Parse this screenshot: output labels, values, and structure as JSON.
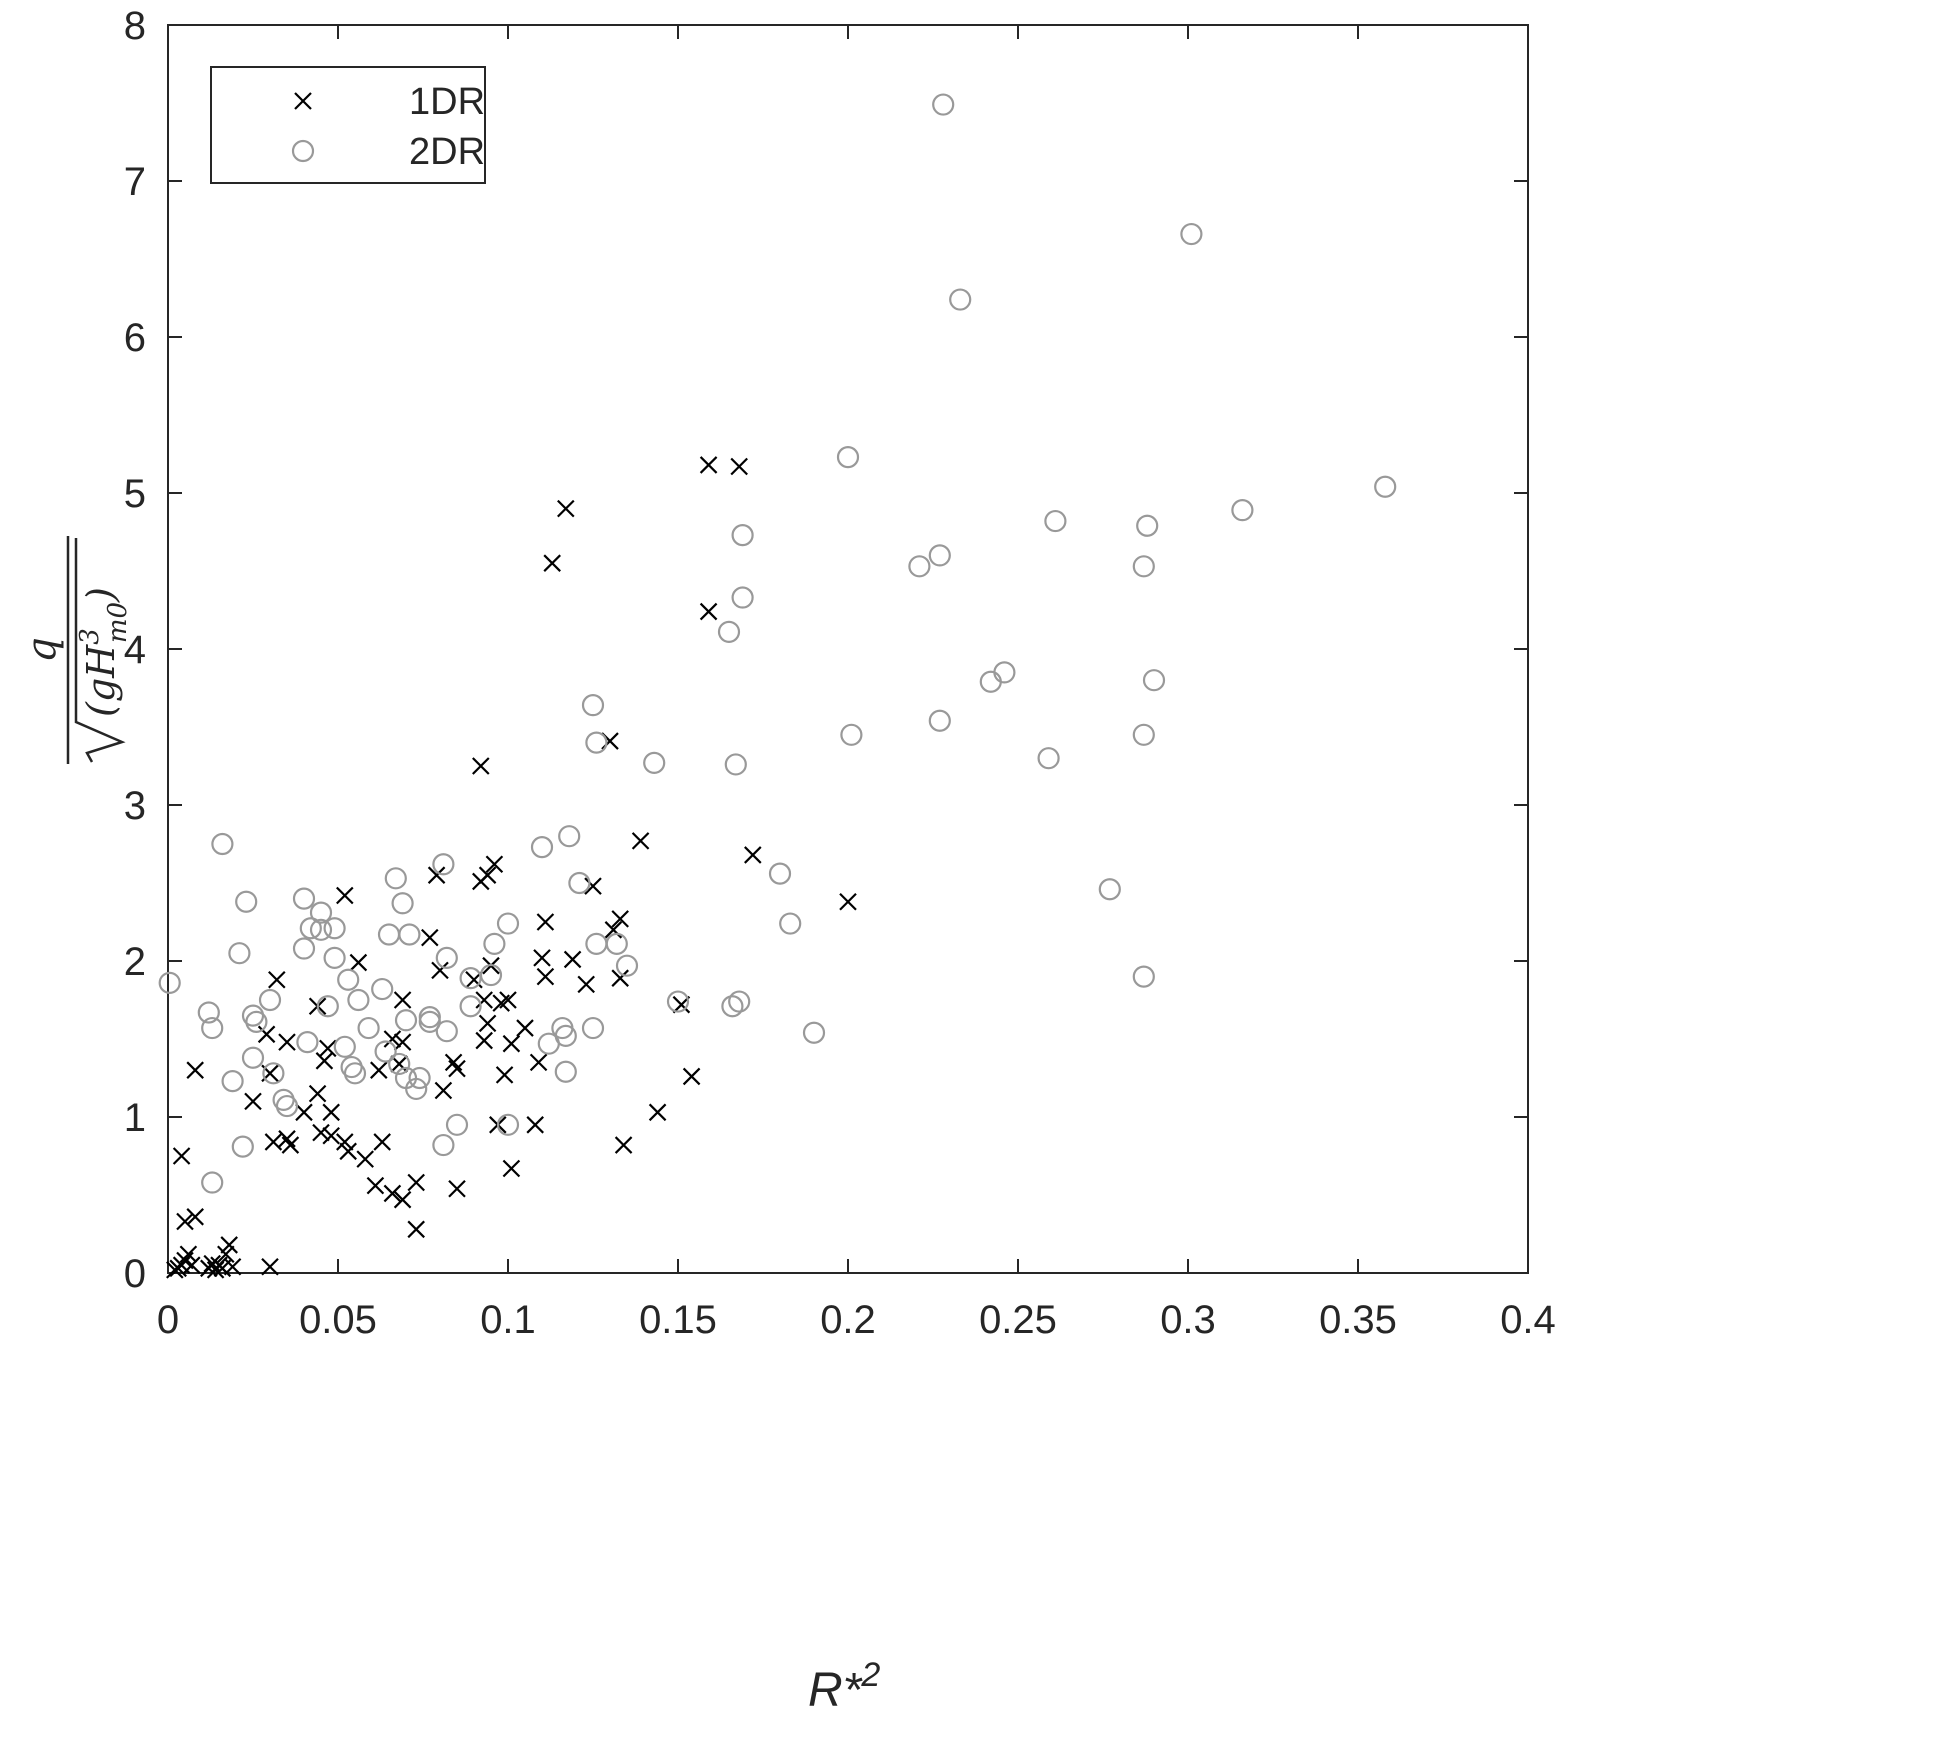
{
  "chart_data": {
    "type": "scatter",
    "title": "",
    "xlabel": {
      "base": "R*",
      "sup": "2"
    },
    "ylabel": {
      "numerator": "q",
      "radicand": "(gH",
      "exp": "3",
      "sub": "m0",
      "close": ")"
    },
    "xlim": [
      0,
      0.4
    ],
    "ylim": [
      0,
      8
    ],
    "x_ticks": [
      "0",
      "0.05",
      "0.1",
      "0.15",
      "0.2",
      "0.25",
      "0.3",
      "0.35",
      "0.4"
    ],
    "y_ticks": [
      "0",
      "1",
      "2",
      "3",
      "4",
      "5",
      "6",
      "7",
      "8"
    ],
    "grid": false,
    "legend": {
      "position": "top-left"
    },
    "series": [
      {
        "name": "1DR",
        "marker": "x",
        "color": "#000000",
        "points": [
          [
            0.002,
            0.02
          ],
          [
            0.003,
            0.03
          ],
          [
            0.004,
            0.05
          ],
          [
            0.005,
            0.08
          ],
          [
            0.006,
            0.12
          ],
          [
            0.007,
            0.05
          ],
          [
            0.004,
            0.75
          ],
          [
            0.005,
            0.33
          ],
          [
            0.008,
            0.36
          ],
          [
            0.008,
            1.3
          ],
          [
            0.012,
            0.03
          ],
          [
            0.013,
            0.06
          ],
          [
            0.014,
            0.02
          ],
          [
            0.015,
            0.05
          ],
          [
            0.016,
            0.03
          ],
          [
            0.017,
            0.12
          ],
          [
            0.018,
            0.18
          ],
          [
            0.019,
            0.04
          ],
          [
            0.03,
            0.04
          ],
          [
            0.025,
            1.1
          ],
          [
            0.029,
            1.53
          ],
          [
            0.03,
            1.28
          ],
          [
            0.031,
            0.84
          ],
          [
            0.032,
            1.88
          ],
          [
            0.035,
            1.48
          ],
          [
            0.035,
            0.86
          ],
          [
            0.036,
            0.82
          ],
          [
            0.04,
            1.03
          ],
          [
            0.044,
            1.15
          ],
          [
            0.044,
            1.71
          ],
          [
            0.045,
            0.9
          ],
          [
            0.046,
            1.36
          ],
          [
            0.047,
            1.44
          ],
          [
            0.048,
            0.88
          ],
          [
            0.048,
            1.03
          ],
          [
            0.052,
            2.42
          ],
          [
            0.052,
            0.84
          ],
          [
            0.053,
            0.78
          ],
          [
            0.056,
            1.99
          ],
          [
            0.058,
            0.73
          ],
          [
            0.061,
            0.56
          ],
          [
            0.062,
            1.3
          ],
          [
            0.063,
            0.84
          ],
          [
            0.066,
            1.5
          ],
          [
            0.066,
            0.51
          ],
          [
            0.068,
            1.34
          ],
          [
            0.069,
            0.47
          ],
          [
            0.069,
            1.48
          ],
          [
            0.069,
            1.75
          ],
          [
            0.073,
            0.58
          ],
          [
            0.073,
            0.28
          ],
          [
            0.077,
            2.15
          ],
          [
            0.079,
            2.55
          ],
          [
            0.08,
            1.94
          ],
          [
            0.081,
            1.17
          ],
          [
            0.084,
            1.35
          ],
          [
            0.085,
            1.31
          ],
          [
            0.085,
            0.54
          ],
          [
            0.09,
            1.88
          ],
          [
            0.092,
            3.25
          ],
          [
            0.092,
            2.51
          ],
          [
            0.093,
            1.49
          ],
          [
            0.093,
            1.75
          ],
          [
            0.094,
            1.6
          ],
          [
            0.094,
            2.55
          ],
          [
            0.095,
            1.97
          ],
          [
            0.096,
            2.62
          ],
          [
            0.097,
            0.95
          ],
          [
            0.098,
            1.73
          ],
          [
            0.099,
            1.27
          ],
          [
            0.1,
            1.75
          ],
          [
            0.101,
            1.47
          ],
          [
            0.101,
            0.67
          ],
          [
            0.105,
            1.57
          ],
          [
            0.108,
            0.95
          ],
          [
            0.109,
            1.35
          ],
          [
            0.11,
            2.02
          ],
          [
            0.111,
            1.9
          ],
          [
            0.111,
            2.25
          ],
          [
            0.113,
            4.55
          ],
          [
            0.117,
            4.9
          ],
          [
            0.119,
            2.01
          ],
          [
            0.123,
            1.85
          ],
          [
            0.125,
            2.48
          ],
          [
            0.13,
            3.41
          ],
          [
            0.131,
            2.2
          ],
          [
            0.133,
            2.27
          ],
          [
            0.133,
            1.89
          ],
          [
            0.134,
            0.82
          ],
          [
            0.139,
            2.77
          ],
          [
            0.144,
            1.03
          ],
          [
            0.151,
            1.72
          ],
          [
            0.154,
            1.26
          ],
          [
            0.159,
            5.18
          ],
          [
            0.159,
            4.24
          ],
          [
            0.168,
            5.17
          ],
          [
            0.172,
            2.68
          ],
          [
            0.2,
            2.38
          ]
        ]
      },
      {
        "name": "2DR",
        "marker": "o",
        "color": "#999999",
        "points": [
          [
            0.0005,
            1.86
          ],
          [
            0.012,
            1.67
          ],
          [
            0.013,
            1.57
          ],
          [
            0.013,
            0.58
          ],
          [
            0.016,
            2.75
          ],
          [
            0.019,
            1.23
          ],
          [
            0.021,
            2.05
          ],
          [
            0.022,
            0.81
          ],
          [
            0.023,
            2.38
          ],
          [
            0.025,
            1.65
          ],
          [
            0.025,
            1.38
          ],
          [
            0.026,
            1.61
          ],
          [
            0.03,
            1.75
          ],
          [
            0.031,
            1.28
          ],
          [
            0.034,
            1.11
          ],
          [
            0.035,
            1.07
          ],
          [
            0.04,
            2.4
          ],
          [
            0.04,
            2.08
          ],
          [
            0.041,
            1.48
          ],
          [
            0.042,
            2.21
          ],
          [
            0.045,
            2.31
          ],
          [
            0.045,
            2.2
          ],
          [
            0.047,
            1.71
          ],
          [
            0.049,
            2.21
          ],
          [
            0.049,
            2.02
          ],
          [
            0.052,
            1.45
          ],
          [
            0.053,
            1.88
          ],
          [
            0.054,
            1.32
          ],
          [
            0.055,
            1.28
          ],
          [
            0.056,
            1.75
          ],
          [
            0.059,
            1.57
          ],
          [
            0.063,
            1.82
          ],
          [
            0.064,
            1.42
          ],
          [
            0.065,
            2.17
          ],
          [
            0.067,
            2.53
          ],
          [
            0.068,
            1.34
          ],
          [
            0.069,
            2.37
          ],
          [
            0.07,
            1.62
          ],
          [
            0.07,
            1.25
          ],
          [
            0.071,
            2.17
          ],
          [
            0.073,
            1.18
          ],
          [
            0.074,
            1.25
          ],
          [
            0.077,
            1.64
          ],
          [
            0.077,
            1.61
          ],
          [
            0.081,
            2.62
          ],
          [
            0.081,
            0.82
          ],
          [
            0.082,
            1.55
          ],
          [
            0.082,
            2.02
          ],
          [
            0.085,
            0.95
          ],
          [
            0.089,
            1.71
          ],
          [
            0.089,
            1.89
          ],
          [
            0.095,
            1.91
          ],
          [
            0.096,
            2.11
          ],
          [
            0.1,
            2.24
          ],
          [
            0.1,
            0.95
          ],
          [
            0.11,
            2.73
          ],
          [
            0.112,
            1.47
          ],
          [
            0.116,
            1.57
          ],
          [
            0.117,
            1.52
          ],
          [
            0.117,
            1.29
          ],
          [
            0.118,
            2.8
          ],
          [
            0.121,
            2.5
          ],
          [
            0.125,
            3.64
          ],
          [
            0.125,
            1.57
          ],
          [
            0.126,
            2.11
          ],
          [
            0.126,
            3.4
          ],
          [
            0.132,
            2.11
          ],
          [
            0.135,
            1.97
          ],
          [
            0.143,
            3.27
          ],
          [
            0.15,
            1.74
          ],
          [
            0.165,
            4.11
          ],
          [
            0.166,
            1.71
          ],
          [
            0.167,
            3.26
          ],
          [
            0.168,
            1.74
          ],
          [
            0.169,
            4.73
          ],
          [
            0.169,
            4.33
          ],
          [
            0.18,
            2.56
          ],
          [
            0.183,
            2.24
          ],
          [
            0.19,
            1.54
          ],
          [
            0.2,
            5.23
          ],
          [
            0.201,
            3.45
          ],
          [
            0.221,
            4.53
          ],
          [
            0.227,
            3.54
          ],
          [
            0.227,
            4.6
          ],
          [
            0.228,
            7.49
          ],
          [
            0.233,
            6.24
          ],
          [
            0.242,
            3.79
          ],
          [
            0.246,
            3.85
          ],
          [
            0.259,
            3.3
          ],
          [
            0.261,
            4.82
          ],
          [
            0.277,
            2.46
          ],
          [
            0.287,
            4.53
          ],
          [
            0.287,
            3.45
          ],
          [
            0.287,
            1.9
          ],
          [
            0.288,
            4.79
          ],
          [
            0.29,
            3.8
          ],
          [
            0.301,
            6.66
          ],
          [
            0.316,
            4.89
          ],
          [
            0.358,
            5.04
          ]
        ]
      }
    ]
  }
}
